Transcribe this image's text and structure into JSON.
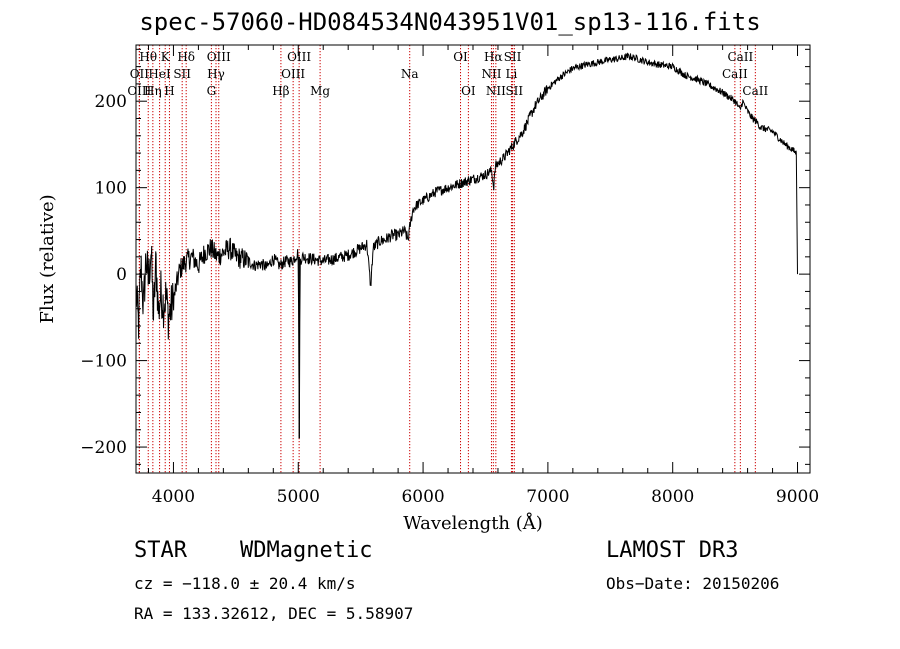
{
  "chart_data": {
    "type": "line",
    "title": "spec-57060-HD084534N043951V01_sp13-116.fits",
    "xlabel": "Wavelength (Å)",
    "ylabel": "Flux (relative)",
    "xlim": [
      3700,
      9100
    ],
    "ylim": [
      -230,
      265
    ],
    "xticks": [
      4000,
      5000,
      6000,
      7000,
      8000,
      9000
    ],
    "xtick_labels": [
      "4000",
      "5000",
      "6000",
      "7000",
      "8000",
      "9000"
    ],
    "yticks": [
      -200,
      -100,
      0,
      100,
      200
    ],
    "ytick_labels": [
      "−200",
      "−100",
      "0",
      "100",
      "200"
    ],
    "series": [
      {
        "name": "flux",
        "x": [
          3700,
          3720,
          3740,
          3760,
          3780,
          3800,
          3820,
          3840,
          3860,
          3880,
          3900,
          3920,
          3940,
          3960,
          3980,
          4000,
          4050,
          4100,
          4150,
          4200,
          4250,
          4300,
          4350,
          4400,
          4450,
          4500,
          4550,
          4600,
          4650,
          4700,
          4750,
          4800,
          4850,
          4900,
          4950,
          5000,
          5008,
          5015,
          5030,
          5100,
          5200,
          5300,
          5400,
          5500,
          5550,
          5580,
          5600,
          5650,
          5700,
          5750,
          5800,
          5850,
          5880,
          5900,
          5920,
          5950,
          6000,
          6100,
          6200,
          6300,
          6400,
          6500,
          6550,
          6565,
          6580,
          6600,
          6650,
          6700,
          6750,
          6800,
          6850,
          6900,
          6950,
          7000,
          7100,
          7200,
          7300,
          7400,
          7500,
          7600,
          7650,
          7700,
          7800,
          7900,
          8000,
          8100,
          8200,
          8300,
          8400,
          8500,
          8540,
          8560,
          8600,
          8640,
          8680,
          8700,
          8800,
          8900,
          8950,
          8990,
          9000
        ],
        "y": [
          -20,
          -60,
          10,
          -40,
          20,
          -10,
          30,
          -50,
          15,
          -45,
          -20,
          -35,
          -25,
          -50,
          -40,
          -30,
          5,
          15,
          20,
          10,
          25,
          30,
          20,
          25,
          30,
          20,
          18,
          15,
          10,
          12,
          8,
          18,
          10,
          15,
          15,
          25,
          -190,
          15,
          20,
          18,
          15,
          18,
          22,
          30,
          35,
          -15,
          30,
          38,
          40,
          45,
          45,
          50,
          40,
          60,
          75,
          80,
          85,
          95,
          100,
          105,
          110,
          115,
          120,
          100,
          125,
          128,
          135,
          145,
          155,
          165,
          180,
          195,
          205,
          215,
          228,
          238,
          242,
          245,
          248,
          250,
          252,
          250,
          245,
          242,
          240,
          230,
          225,
          218,
          210,
          200,
          190,
          200,
          188,
          180,
          175,
          170,
          165,
          150,
          145,
          140,
          0
        ]
      }
    ],
    "lines": [
      {
        "label": "Hθ",
        "x": 3798,
        "row": 1,
        "ha": "center"
      },
      {
        "label": "K",
        "x": 3934,
        "row": 1,
        "ha": "center"
      },
      {
        "label": "Hδ",
        "x": 4102,
        "row": 1,
        "ha": "center"
      },
      {
        "label": "OIII",
        "x": 4363,
        "row": 1,
        "ha": "center"
      },
      {
        "label": "OIII",
        "x": 5007,
        "row": 1,
        "ha": "center"
      },
      {
        "label": "OI",
        "x": 6300,
        "row": 1,
        "ha": "center"
      },
      {
        "label": "Hα",
        "x": 6563,
        "row": 1,
        "ha": "center"
      },
      {
        "label": "SII",
        "x": 6717,
        "row": 1,
        "ha": "center"
      },
      {
        "label": "CaII",
        "x": 8542,
        "row": 1,
        "ha": "center"
      },
      {
        "label": "OII",
        "x": 3727,
        "row": 2,
        "ha": "center"
      },
      {
        "label": "HeI",
        "x": 3889,
        "row": 2,
        "ha": "center"
      },
      {
        "label": "SII",
        "x": 4070,
        "row": 2,
        "ha": "center"
      },
      {
        "label": "Hγ",
        "x": 4341,
        "row": 2,
        "ha": "center"
      },
      {
        "label": "OIII",
        "x": 4959,
        "row": 2,
        "ha": "center"
      },
      {
        "label": "Na",
        "x": 5893,
        "row": 2,
        "ha": "center"
      },
      {
        "label": "NII",
        "x": 6548,
        "row": 2,
        "ha": "center"
      },
      {
        "label": "Li",
        "x": 6708,
        "row": 2,
        "ha": "center"
      },
      {
        "label": "CaII",
        "x": 8498,
        "row": 2,
        "ha": "center"
      },
      {
        "label": "OIII",
        "x": 3727,
        "row": 3,
        "ha": "center"
      },
      {
        "label": "Hη",
        "x": 3835,
        "row": 3,
        "ha": "center"
      },
      {
        "label": "H",
        "x": 3968,
        "row": 3,
        "ha": "center"
      },
      {
        "label": "G",
        "x": 4304,
        "row": 3,
        "ha": "center"
      },
      {
        "label": "Hβ",
        "x": 4861,
        "row": 3,
        "ha": "center"
      },
      {
        "label": "Mg",
        "x": 5175,
        "row": 3,
        "ha": "center"
      },
      {
        "label": "OI",
        "x": 6363,
        "row": 3,
        "ha": "center"
      },
      {
        "label": "NII",
        "x": 6583,
        "row": 3,
        "ha": "center"
      },
      {
        "label": "SII",
        "x": 6731,
        "row": 3,
        "ha": "center"
      },
      {
        "label": "CaII",
        "x": 8662,
        "row": 3,
        "ha": "center"
      }
    ],
    "line_color": "#cc0000",
    "curve_color": "#000000"
  },
  "info": {
    "object_class": "STAR",
    "object_subclass": "WDMagnetic",
    "survey": "LAMOST DR3",
    "cz": "cz = −118.0 ± 20.4 km/s",
    "obs_date": "Obs−Date: 20150206",
    "radec": "RA = 133.32612, DEC =   5.58907"
  }
}
